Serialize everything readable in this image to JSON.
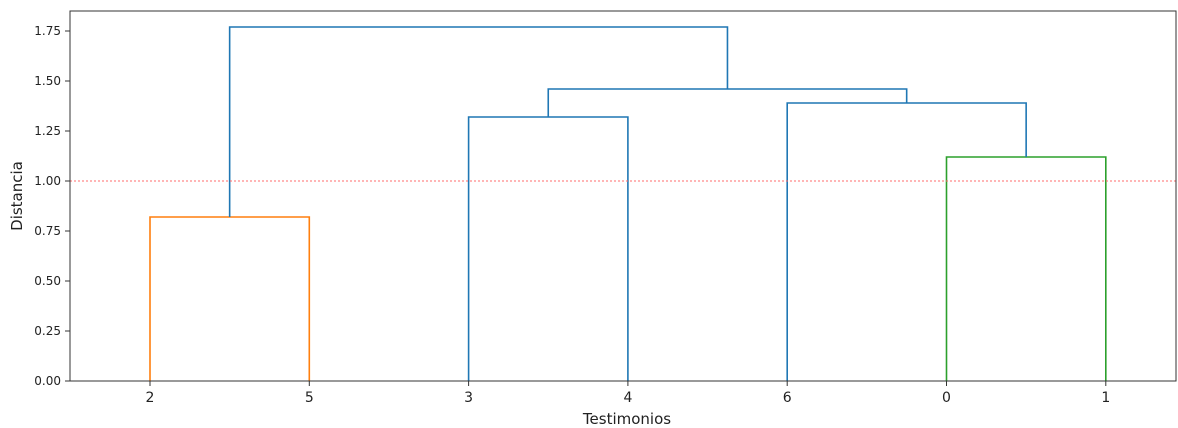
{
  "chart_data": {
    "type": "dendrogram",
    "xlabel": "Testimonios",
    "ylabel": "Distancia",
    "ylim": [
      0,
      1.85
    ],
    "y_ticks": [
      0.0,
      0.25,
      0.5,
      0.75,
      1.0,
      1.25,
      1.5,
      1.75
    ],
    "y_tick_labels": [
      "0.00",
      "0.25",
      "0.50",
      "0.75",
      "1.00",
      "1.25",
      "1.50",
      "1.75"
    ],
    "leaves": [
      "2",
      "5",
      "3",
      "4",
      "6",
      "0",
      "1"
    ],
    "threshold": {
      "value": 1.0,
      "color": "#ff6b6b",
      "style": "dashed"
    },
    "grid": false,
    "links": [
      {
        "a": "2",
        "b": "5",
        "height": 0.82,
        "color": "#ff7f0e"
      },
      {
        "a": "0",
        "b": "1",
        "height": 1.12,
        "color": "#2ca02c"
      },
      {
        "a": "3",
        "b": "4",
        "height": 1.32,
        "color": "#1f77b4"
      },
      {
        "a": "6",
        "b": "0+1",
        "height": 1.39,
        "color": "#1f77b4"
      },
      {
        "a": "3+4",
        "b": "6+0+1",
        "height": 1.46,
        "color": "#1f77b4"
      },
      {
        "a": "2+5",
        "b": "3+4+6+0+1",
        "height": 1.77,
        "color": "#1f77b4"
      }
    ]
  }
}
